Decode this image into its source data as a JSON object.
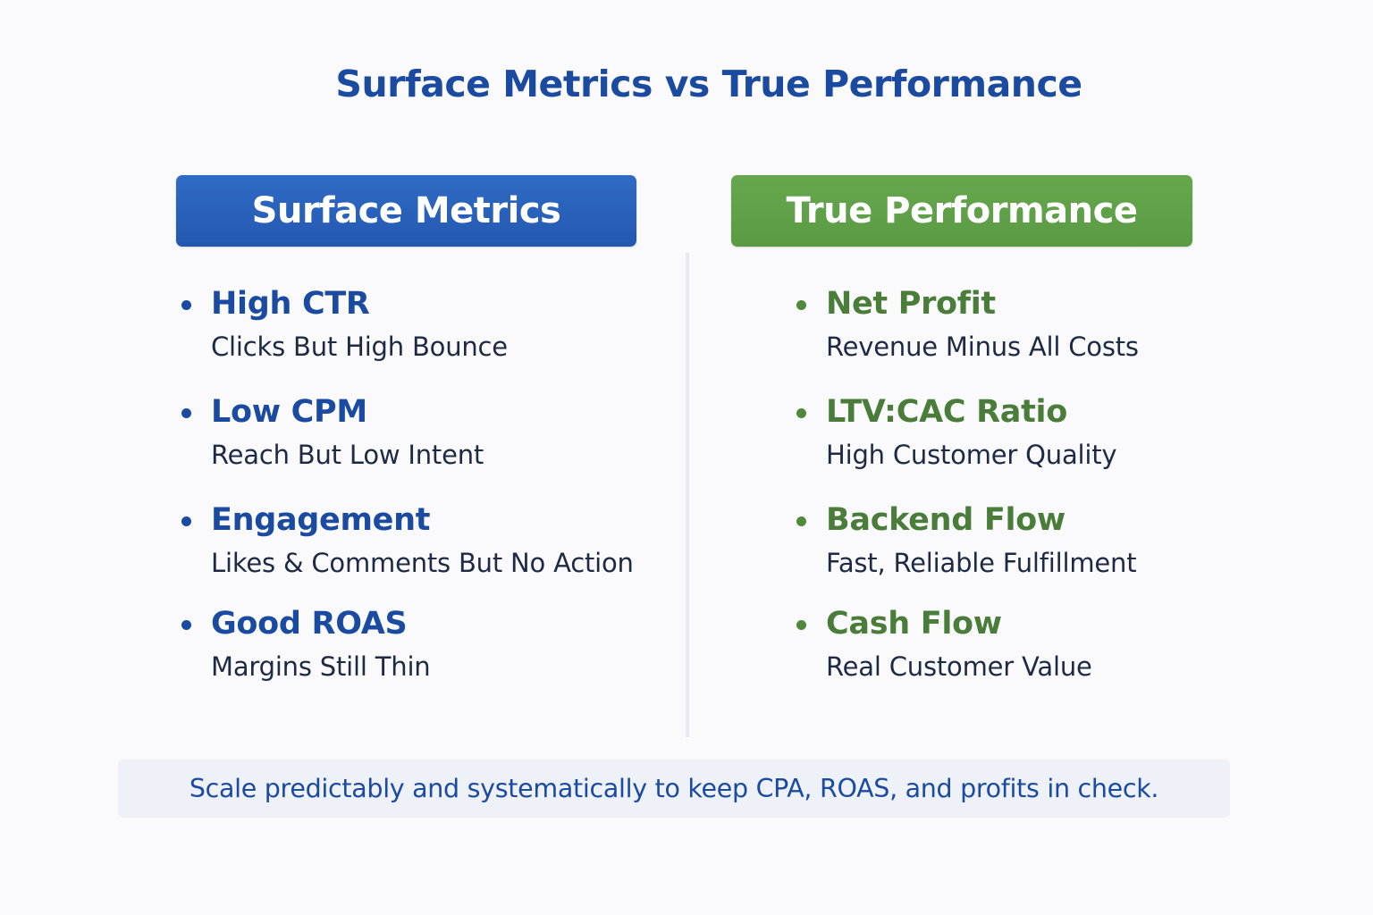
{
  "title": "Surface Metrics vs True Performance",
  "colors": {
    "blue": "#2458b0",
    "green": "#5a9a43",
    "title_blue": "#1b4ba0",
    "green_text": "#4a7d3a"
  },
  "left": {
    "header": "Surface Metrics",
    "items": [
      {
        "title": "High CTR",
        "subtitle": "Clicks But High Bounce"
      },
      {
        "title": "Low CPM",
        "subtitle": "Reach But Low Intent"
      },
      {
        "title": "Engagement",
        "subtitle": "Likes & Comments But No Action"
      },
      {
        "title": "Good ROAS",
        "subtitle": "Margins Still Thin"
      }
    ]
  },
  "right": {
    "header": "True Performance",
    "items": [
      {
        "title": "Net Profit",
        "subtitle": "Revenue Minus All Costs"
      },
      {
        "title": "LTV:CAC Ratio",
        "subtitle": "High Customer Quality"
      },
      {
        "title": "Backend Flow",
        "subtitle": "Fast, Reliable Fulfillment"
      },
      {
        "title": "Cash Flow",
        "subtitle": "Real Customer Value"
      }
    ]
  },
  "footer": "Scale predictably and systematically to keep CPA, ROAS, and profits in check."
}
